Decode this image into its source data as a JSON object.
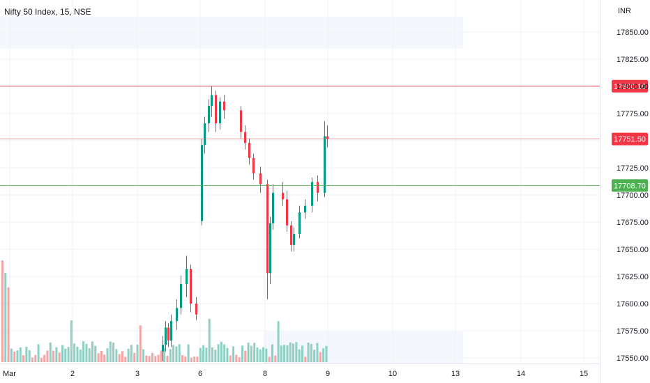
{
  "header": {
    "symbol_title": "Nifty 50 Index, 15, NSE",
    "currency": "INR"
  },
  "chart_data": {
    "type": "candlestick",
    "title": "Nifty 50 Index, 15, NSE",
    "ylabel": "INR",
    "ylim": [
      17545,
      17870
    ],
    "y_ticks": [
      17850,
      17825,
      17800,
      17775,
      17750,
      17725,
      17700,
      17675,
      17650,
      17625,
      17600,
      17575,
      17550
    ],
    "y_tick_labels": [
      "17850.00",
      "17825.00",
      "17800.00",
      "17775.00",
      "17750.00",
      "17725.00",
      "17700.00",
      "17675.00",
      "17650.00",
      "17625.00",
      "17600.00",
      "17575.00",
      "17550.00"
    ],
    "x_tick_labels": [
      "Mar",
      "2",
      "3",
      "6",
      "8",
      "9",
      "10",
      "13",
      "14",
      "15"
    ],
    "horizontal_levels": [
      {
        "price": 17800.15,
        "label": "17800.15",
        "color": "#f23645"
      },
      {
        "price": 17751.5,
        "label": "17751.50",
        "color": "#f23645"
      },
      {
        "price": 17708.7,
        "label": "17708.70",
        "color": "#4caf50"
      }
    ],
    "last_price": 17751.5,
    "up_color": "#089981",
    "down_color": "#f23645",
    "volume_up_color": "#8fd0c5",
    "volume_down_color": "#f4a6a6",
    "candles": [
      {
        "o": 17556,
        "h": 17570,
        "l": 17547,
        "c": 17562
      },
      {
        "o": 17562,
        "h": 17584,
        "l": 17556,
        "c": 17578
      },
      {
        "o": 17578,
        "h": 17582,
        "l": 17560,
        "c": 17566
      },
      {
        "o": 17566,
        "h": 17590,
        "l": 17560,
        "c": 17584
      },
      {
        "o": 17584,
        "h": 17604,
        "l": 17576,
        "c": 17596
      },
      {
        "o": 17596,
        "h": 17626,
        "l": 17590,
        "c": 17618
      },
      {
        "o": 17618,
        "h": 17644,
        "l": 17606,
        "c": 17632
      },
      {
        "o": 17632,
        "h": 17636,
        "l": 17592,
        "c": 17600
      },
      {
        "o": 17600,
        "h": 17606,
        "l": 17585,
        "c": 17590
      },
      {
        "o": 17676,
        "h": 17752,
        "l": 17672,
        "c": 17746
      },
      {
        "o": 17746,
        "h": 17772,
        "l": 17738,
        "c": 17766
      },
      {
        "o": 17766,
        "h": 17788,
        "l": 17758,
        "c": 17782
      },
      {
        "o": 17782,
        "h": 17800,
        "l": 17772,
        "c": 17792
      },
      {
        "o": 17792,
        "h": 17796,
        "l": 17758,
        "c": 17766
      },
      {
        "o": 17766,
        "h": 17790,
        "l": 17760,
        "c": 17786
      },
      {
        "o": 17786,
        "h": 17792,
        "l": 17770,
        "c": 17778
      },
      {
        "o": 17778,
        "h": 17782,
        "l": 17752,
        "c": 17758
      },
      {
        "o": 17758,
        "h": 17764,
        "l": 17742,
        "c": 17748
      },
      {
        "o": 17748,
        "h": 17752,
        "l": 17728,
        "c": 17734
      },
      {
        "o": 17734,
        "h": 17738,
        "l": 17714,
        "c": 17720
      },
      {
        "o": 17720,
        "h": 17726,
        "l": 17702,
        "c": 17710
      },
      {
        "o": 17710,
        "h": 17714,
        "l": 17604,
        "c": 17628
      },
      {
        "o": 17628,
        "h": 17680,
        "l": 17618,
        "c": 17674
      },
      {
        "o": 17674,
        "h": 17710,
        "l": 17668,
        "c": 17702
      },
      {
        "o": 17702,
        "h": 17712,
        "l": 17690,
        "c": 17696
      },
      {
        "o": 17696,
        "h": 17704,
        "l": 17666,
        "c": 17672
      },
      {
        "o": 17672,
        "h": 17676,
        "l": 17648,
        "c": 17654
      },
      {
        "o": 17654,
        "h": 17670,
        "l": 17648,
        "c": 17664
      },
      {
        "o": 17664,
        "h": 17690,
        "l": 17660,
        "c": 17684
      },
      {
        "o": 17684,
        "h": 17696,
        "l": 17678,
        "c": 17690
      },
      {
        "o": 17690,
        "h": 17716,
        "l": 17684,
        "c": 17712
      },
      {
        "o": 17712,
        "h": 17718,
        "l": 17694,
        "c": 17702
      },
      {
        "o": 17702,
        "h": 17768,
        "l": 17698,
        "c": 17754
      },
      {
        "o": 17754,
        "h": 17764,
        "l": 17744,
        "c": 17751.5
      }
    ],
    "candle_x": [
      232,
      236,
      240,
      244,
      252,
      258,
      266,
      272,
      280,
      288,
      292,
      298,
      302,
      308,
      314,
      320,
      344,
      350,
      356,
      362,
      372,
      382,
      386,
      390,
      404,
      410,
      416,
      420,
      428,
      436,
      446,
      454,
      464,
      468
    ],
    "volumes": [
      22,
      18,
      30,
      14,
      20,
      26,
      34,
      40,
      12,
      60,
      35,
      28,
      30,
      25,
      22,
      26,
      30,
      20,
      22,
      18,
      15,
      70,
      22,
      28,
      20,
      16,
      14,
      18,
      15,
      16,
      28,
      22,
      36,
      30
    ]
  }
}
